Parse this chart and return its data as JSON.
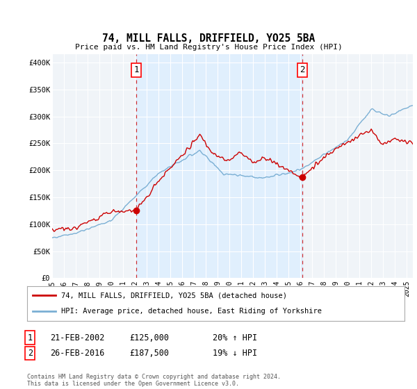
{
  "title": "74, MILL FALLS, DRIFFIELD, YO25 5BA",
  "subtitle": "Price paid vs. HM Land Registry's House Price Index (HPI)",
  "ylabel_ticks": [
    "£0",
    "£50K",
    "£100K",
    "£150K",
    "£200K",
    "£250K",
    "£300K",
    "£350K",
    "£400K"
  ],
  "ytick_values": [
    0,
    50000,
    100000,
    150000,
    200000,
    250000,
    300000,
    350000,
    400000
  ],
  "ylim": [
    0,
    415000
  ],
  "xlim_start": 1995.0,
  "xlim_end": 2025.5,
  "sale1_x": 2002.13,
  "sale1_y": 125000,
  "sale2_x": 2016.15,
  "sale2_y": 187500,
  "vline1_x": 2002.13,
  "vline2_x": 2016.15,
  "red_color": "#cc0000",
  "blue_color": "#7aafd4",
  "shade_color": "#ddeeff",
  "marker_color": "#cc0000",
  "bg_color": "#f0f4f8",
  "grid_color": "#ffffff",
  "legend_label_red": "74, MILL FALLS, DRIFFIELD, YO25 5BA (detached house)",
  "legend_label_blue": "HPI: Average price, detached house, East Riding of Yorkshire",
  "table_row1": [
    "1",
    "21-FEB-2002",
    "£125,000",
    "20% ↑ HPI"
  ],
  "table_row2": [
    "2",
    "26-FEB-2016",
    "£187,500",
    "19% ↓ HPI"
  ],
  "footnote": "Contains HM Land Registry data © Crown copyright and database right 2024.\nThis data is licensed under the Open Government Licence v3.0.",
  "xlabel_years": [
    "1995",
    "1996",
    "1997",
    "1998",
    "1999",
    "2000",
    "2001",
    "2002",
    "2003",
    "2004",
    "2005",
    "2006",
    "2007",
    "2008",
    "2009",
    "2010",
    "2011",
    "2012",
    "2013",
    "2014",
    "2015",
    "2016",
    "2017",
    "2018",
    "2019",
    "2020",
    "2021",
    "2022",
    "2023",
    "2024",
    "2025"
  ]
}
